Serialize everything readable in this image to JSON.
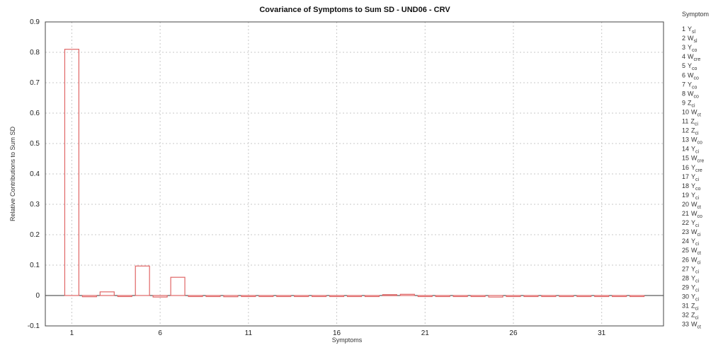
{
  "chart_data": {
    "type": "bar",
    "title": "Covariance of Symptoms to Sum SD - UND06 - CRV",
    "xlabel": "Symptoms",
    "ylabel": "Relative Contributions to Sum SD",
    "xlim": [
      -0.5,
      34.5
    ],
    "ylim": [
      -0.1,
      0.9
    ],
    "xticks": [
      1,
      6,
      11,
      16,
      21,
      26,
      31
    ],
    "yticks": [
      "-0.1",
      "0",
      "0.1",
      "0.2",
      "0.3",
      "0.4",
      "0.5",
      "0.6",
      "0.7",
      "0.8",
      "0.9"
    ],
    "grid": true,
    "bar_color": "#e06666",
    "categories": [
      1,
      2,
      3,
      4,
      5,
      6,
      7,
      8,
      9,
      10,
      11,
      12,
      13,
      14,
      15,
      16,
      17,
      18,
      19,
      20,
      21,
      22,
      23,
      24,
      25,
      26,
      27,
      28,
      29,
      30,
      31,
      32,
      33
    ],
    "values": [
      0.81,
      -0.004,
      0.012,
      -0.003,
      0.097,
      -0.005,
      0.06,
      -0.003,
      -0.002,
      -0.004,
      -0.002,
      -0.003,
      -0.002,
      0,
      0,
      -0.002,
      -0.002,
      -0.003,
      0.003,
      0.004,
      0,
      -0.002,
      -0.002,
      -0.003,
      -0.005,
      -0.003,
      -0.003,
      0,
      -0.002,
      0,
      -0.002,
      0,
      0
    ],
    "legend_title": "Symptom",
    "legend": [
      {
        "num": "1",
        "sym": "Y",
        "sub": "sl"
      },
      {
        "num": "2",
        "sym": "W",
        "sub": "sl"
      },
      {
        "num": "3",
        "sym": "Y",
        "sub": "co"
      },
      {
        "num": "4",
        "sym": "W",
        "sub": "cre"
      },
      {
        "num": "5",
        "sym": "Y",
        "sub": "co"
      },
      {
        "num": "6",
        "sym": "W",
        "sub": "co"
      },
      {
        "num": "7",
        "sym": "Y",
        "sub": "co"
      },
      {
        "num": "8",
        "sym": "W",
        "sub": "co"
      },
      {
        "num": "9",
        "sym": "Z",
        "sub": "ci"
      },
      {
        "num": "10",
        "sym": "W",
        "sub": "ct"
      },
      {
        "num": "11",
        "sym": "Z",
        "sub": "ci"
      },
      {
        "num": "12",
        "sym": "Z",
        "sub": "ci"
      },
      {
        "num": "13",
        "sym": "W",
        "sub": "co"
      },
      {
        "num": "14",
        "sym": "Y",
        "sub": "ci"
      },
      {
        "num": "15",
        "sym": "W",
        "sub": "cre"
      },
      {
        "num": "16",
        "sym": "Y",
        "sub": "cre"
      },
      {
        "num": "17",
        "sym": "Y",
        "sub": "ci"
      },
      {
        "num": "18",
        "sym": "Y",
        "sub": "co"
      },
      {
        "num": "19",
        "sym": "Y",
        "sub": "ci"
      },
      {
        "num": "20",
        "sym": "W",
        "sub": "ct"
      },
      {
        "num": "21",
        "sym": "W",
        "sub": "co"
      },
      {
        "num": "22",
        "sym": "Y",
        "sub": "ci"
      },
      {
        "num": "23",
        "sym": "W",
        "sub": "ci"
      },
      {
        "num": "24",
        "sym": "Y",
        "sub": "ci"
      },
      {
        "num": "25",
        "sym": "W",
        "sub": "ct"
      },
      {
        "num": "26",
        "sym": "W",
        "sub": "ci"
      },
      {
        "num": "27",
        "sym": "Y",
        "sub": "ci"
      },
      {
        "num": "28",
        "sym": "Y",
        "sub": "ci"
      },
      {
        "num": "29",
        "sym": "Y",
        "sub": "ci"
      },
      {
        "num": "30",
        "sym": "Y",
        "sub": "ci"
      },
      {
        "num": "31",
        "sym": "Z",
        "sub": "ci"
      },
      {
        "num": "32",
        "sym": "Z",
        "sub": "ci"
      },
      {
        "num": "33",
        "sym": "W",
        "sub": "ct"
      }
    ]
  }
}
